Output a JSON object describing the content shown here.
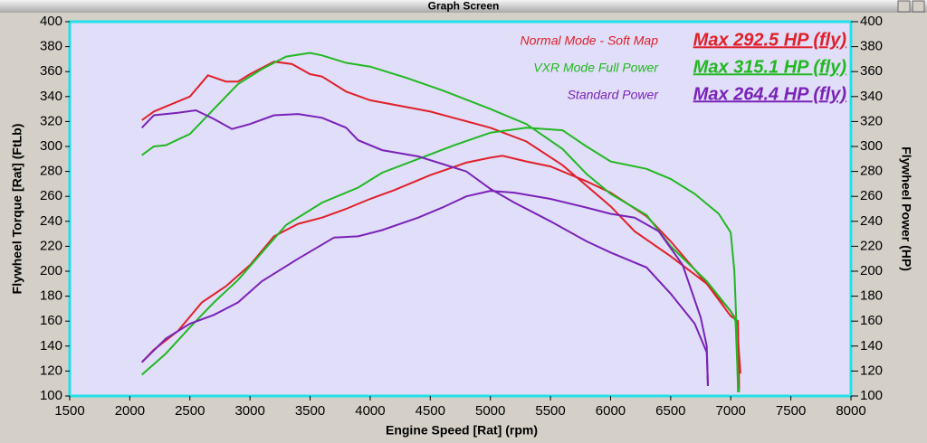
{
  "chart_data": {
    "type": "line",
    "title": "Graph Screen",
    "x_label": "Engine Speed [Rat] (rpm)",
    "y_label": "Flywheel Torque [Rat] (FtLb)",
    "y2_label": "Flywheel Power (HP)",
    "xlim": [
      1500,
      8000
    ],
    "xticks": [
      1500,
      2000,
      2500,
      3000,
      3500,
      4000,
      4500,
      5000,
      5500,
      6000,
      6500,
      7000,
      7500,
      8000
    ],
    "ylim": [
      100,
      400
    ],
    "yticks": [
      100,
      120,
      140,
      160,
      180,
      200,
      220,
      240,
      260,
      280,
      300,
      320,
      340,
      360,
      380,
      400
    ],
    "y2lim": [
      100,
      400
    ],
    "y2ticks": [
      100,
      120,
      140,
      160,
      180,
      200,
      220,
      240,
      260,
      280,
      300,
      320,
      340,
      360,
      380,
      400
    ],
    "series": [
      {
        "name": "Normal Mode - Soft Map",
        "max_label": "Max 292.5 HP (fly)",
        "color": "#e0202a",
        "torque_x": [
          2100,
          2200,
          2300,
          2500,
          2650,
          2800,
          2900,
          3000,
          3200,
          3350,
          3500,
          3600,
          3800,
          4000,
          4500,
          5000,
          5300,
          5600,
          6000,
          6200,
          6500,
          6800,
          7000,
          7050,
          7080
        ],
        "torque": [
          321,
          328,
          332,
          340,
          357,
          352,
          352,
          358,
          368,
          366,
          358,
          356,
          344,
          337,
          328,
          315,
          304,
          285,
          252,
          232,
          212,
          190,
          168,
          160,
          118
        ],
        "power_x": [
          2100,
          2200,
          2400,
          2600,
          2800,
          3000,
          3200,
          3400,
          3600,
          3800,
          4000,
          4200,
          4500,
          4800,
          5000,
          5100,
          5300,
          5500,
          5800,
          6000,
          6300,
          6500,
          6800,
          7000,
          7060,
          7070
        ],
        "power": [
          127,
          137,
          152,
          175,
          188,
          205,
          228,
          238,
          243,
          250,
          258,
          265,
          277,
          287,
          291,
          292.5,
          288,
          284,
          272,
          263,
          244,
          224,
          190,
          164,
          160,
          105
        ]
      },
      {
        "name": "VXR Mode Full Power",
        "max_label": "Max 315.1 HP (fly)",
        "color": "#22b822",
        "torque_x": [
          2100,
          2200,
          2300,
          2500,
          2700,
          2900,
          3100,
          3300,
          3500,
          3600,
          3800,
          4000,
          4300,
          4600,
          5000,
          5300,
          5600,
          5800,
          6000,
          6300,
          6500,
          6800,
          7000,
          7040,
          7060,
          7070
        ],
        "torque": [
          293,
          300,
          301,
          310,
          330,
          350,
          362,
          372,
          375,
          373,
          367,
          364,
          355,
          345,
          330,
          318,
          298,
          278,
          262,
          245,
          220,
          192,
          168,
          160,
          110,
          103
        ],
        "power_x": [
          2100,
          2300,
          2500,
          2700,
          2900,
          3100,
          3300,
          3600,
          3900,
          4100,
          4400,
          4700,
          5000,
          5300,
          5600,
          5800,
          6000,
          6300,
          6500,
          6700,
          6900,
          7000,
          7030,
          7050,
          7060
        ],
        "power": [
          117,
          134,
          155,
          175,
          193,
          215,
          237,
          255,
          267,
          279,
          290,
          301,
          311,
          315.1,
          313,
          300,
          288,
          282,
          274,
          262,
          246,
          231,
          200,
          150,
          103
        ]
      },
      {
        "name": "Standard Power",
        "max_label": "Max 264.4 HP (fly)",
        "color": "#7a22b8",
        "torque_x": [
          2100,
          2200,
          2400,
          2550,
          2700,
          2850,
          3000,
          3200,
          3400,
          3600,
          3800,
          3900,
          4100,
          4400,
          4800,
          5000,
          5200,
          5500,
          5800,
          6000,
          6300,
          6500,
          6700,
          6800,
          6810
        ],
        "torque": [
          315,
          325,
          327,
          329,
          322,
          314,
          318,
          325,
          326,
          323,
          315,
          305,
          297,
          292,
          280,
          266,
          255,
          240,
          224,
          215,
          203,
          182,
          158,
          135,
          108
        ],
        "power_x": [
          2100,
          2300,
          2500,
          2700,
          2900,
          3100,
          3400,
          3700,
          3900,
          4100,
          4400,
          4600,
          4800,
          5000,
          5200,
          5500,
          5800,
          6000,
          6200,
          6400,
          6600,
          6750,
          6800,
          6810
        ],
        "power": [
          127,
          146,
          158,
          165,
          175,
          192,
          210,
          227,
          228,
          233,
          243,
          251,
          260,
          264.4,
          263,
          258,
          251,
          246,
          243,
          232,
          205,
          163,
          140,
          108
        ]
      }
    ]
  }
}
